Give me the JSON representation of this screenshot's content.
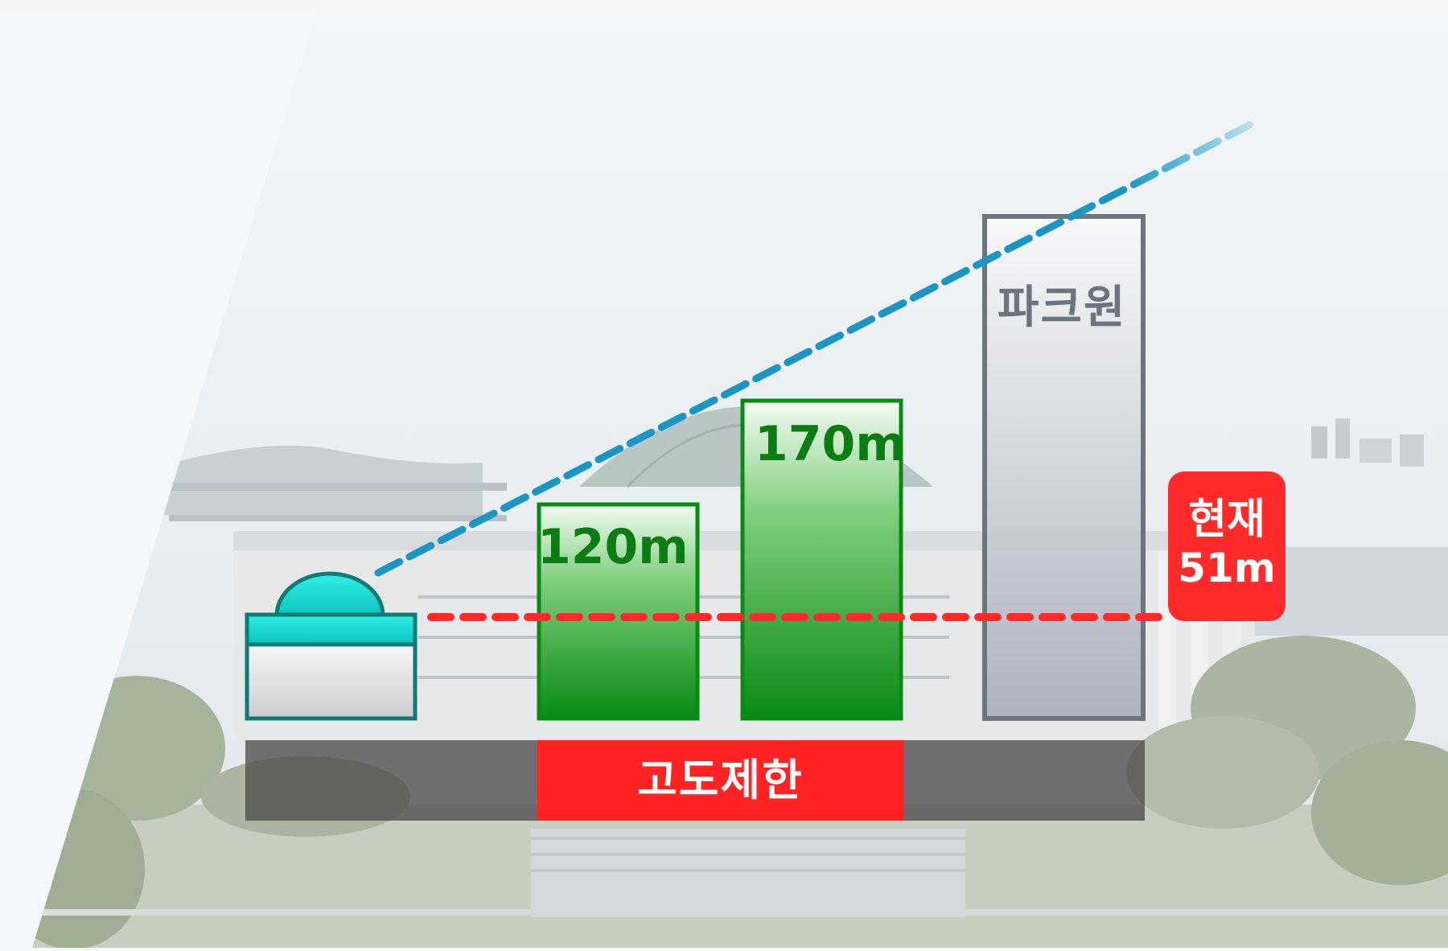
{
  "buildings": {
    "bar_120_label": "120m",
    "bar_170_label": "170m",
    "parkone_label": "파크원"
  },
  "current_height": {
    "line1": "현재",
    "line2": "51m"
  },
  "restriction_label": "고도제한",
  "colors": {
    "green": "#0a8a14",
    "red": "#ff2a2a",
    "blue_dash": "#1a95c4",
    "dome_teal": "#10d6cf",
    "grey_frame": "#6d7480"
  }
}
